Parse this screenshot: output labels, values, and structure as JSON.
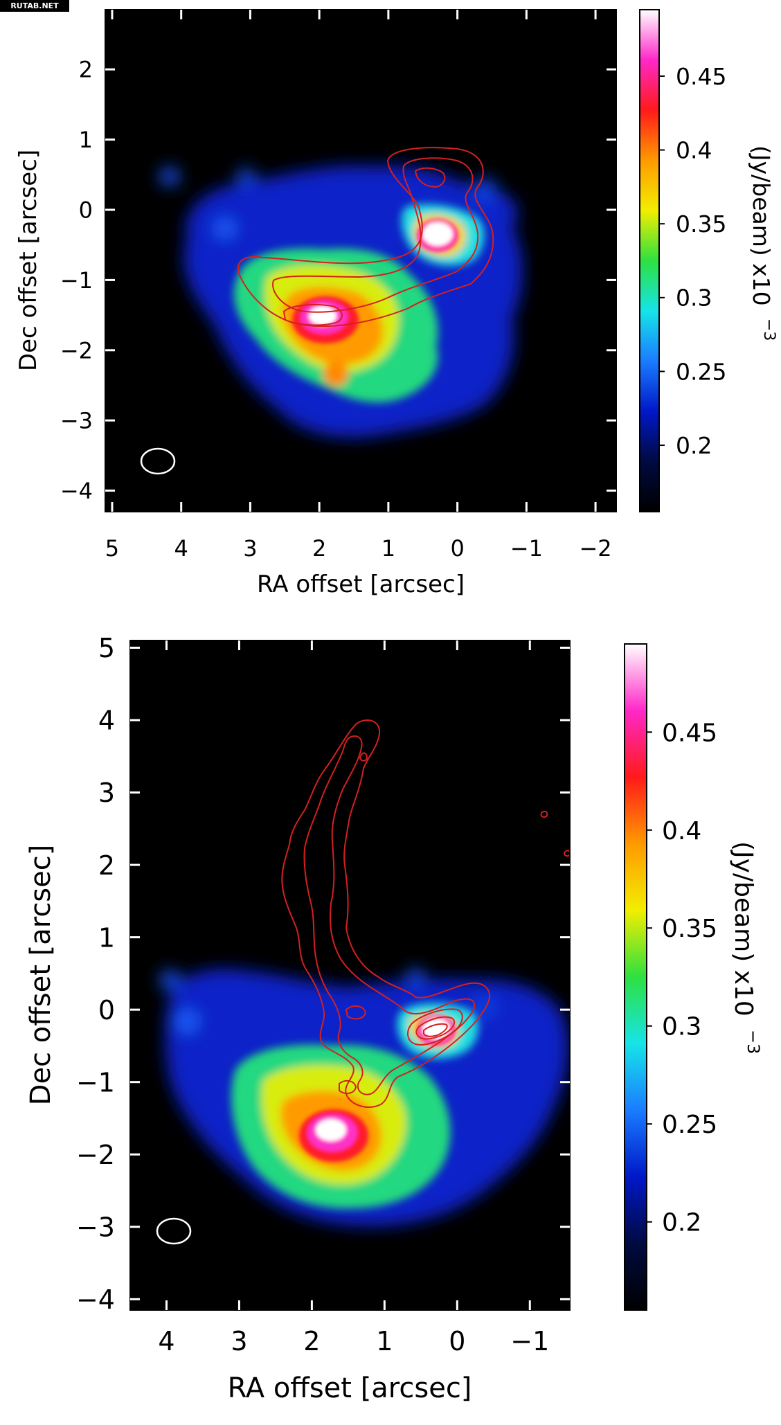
{
  "watermark": "RUTAB.NET",
  "chart_data": [
    {
      "type": "heatmap",
      "xlabel": "RA offset [arcsec]",
      "ylabel": "Dec offset [arcsec]",
      "colorbar_label": "(Jy/beam)  x10",
      "colorbar_exponent": "−3",
      "colorbar_ticks": [
        {
          "value": 0.2,
          "label": "0.2"
        },
        {
          "value": 0.25,
          "label": "0.25"
        },
        {
          "value": 0.3,
          "label": "0.3"
        },
        {
          "value": 0.35,
          "label": "0.35"
        },
        {
          "value": 0.4,
          "label": "0.4"
        },
        {
          "value": 0.45,
          "label": "0.45"
        }
      ],
      "colorbar_range": [
        0.155,
        0.495
      ],
      "colormap": [
        "#000000",
        "#000a40",
        "#0018c8",
        "#1a7cff",
        "#16e4e8",
        "#2ee040",
        "#f2ee00",
        "#ff9a00",
        "#ff1a1a",
        "#ff28c8",
        "#ffffff"
      ],
      "xlim": [
        5.1,
        -2.3
      ],
      "ylim": [
        -4.3,
        2.85
      ],
      "x_ticks": [
        {
          "value": 5,
          "label": "5"
        },
        {
          "value": 4,
          "label": "4"
        },
        {
          "value": 3,
          "label": "3"
        },
        {
          "value": 2,
          "label": "2"
        },
        {
          "value": 1,
          "label": "1"
        },
        {
          "value": 0,
          "label": "0"
        },
        {
          "value": -1,
          "label": "−1"
        },
        {
          "value": -2,
          "label": "−2"
        }
      ],
      "y_ticks": [
        {
          "value": 2,
          "label": "2"
        },
        {
          "value": 1,
          "label": "1"
        },
        {
          "value": 0,
          "label": "0"
        },
        {
          "value": -1,
          "label": "−1"
        },
        {
          "value": -2,
          "label": "−2"
        },
        {
          "value": -3,
          "label": "−3"
        },
        {
          "value": -4,
          "label": "−4"
        }
      ],
      "emission_peaks_arcsec": [
        {
          "x": 1.8,
          "y": -1.75,
          "peak_mJy_per_beam": 0.5
        },
        {
          "x": 0.3,
          "y": -0.45,
          "peak_mJy_per_beam": 0.5
        }
      ],
      "beam": {
        "x": 4.35,
        "y": -3.65,
        "major_arcsec": 0.45,
        "minor_arcsec": 0.37
      },
      "contour_color": "#d42020"
    },
    {
      "type": "heatmap",
      "xlabel": "RA offset [arcsec]",
      "ylabel": "Dec offset [arcsec]",
      "colorbar_label": "(Jy/beam)  x10",
      "colorbar_exponent": "−3",
      "colorbar_ticks": [
        {
          "value": 0.2,
          "label": "0.2"
        },
        {
          "value": 0.25,
          "label": "0.25"
        },
        {
          "value": 0.3,
          "label": "0.3"
        },
        {
          "value": 0.35,
          "label": "0.35"
        },
        {
          "value": 0.4,
          "label": "0.4"
        },
        {
          "value": 0.45,
          "label": "0.45"
        }
      ],
      "colorbar_range": [
        0.155,
        0.495
      ],
      "colormap": [
        "#000000",
        "#000a40",
        "#0018c8",
        "#1a7cff",
        "#16e4e8",
        "#2ee040",
        "#f2ee00",
        "#ff9a00",
        "#ff1a1a",
        "#ff28c8",
        "#ffffff"
      ],
      "xlim": [
        4.5,
        -1.55
      ],
      "ylim": [
        -4.15,
        5.1
      ],
      "x_ticks": [
        {
          "value": 4,
          "label": "4"
        },
        {
          "value": 3,
          "label": "3"
        },
        {
          "value": 2,
          "label": "2"
        },
        {
          "value": 1,
          "label": "1"
        },
        {
          "value": 0,
          "label": "0"
        },
        {
          "value": -1,
          "label": "−1"
        }
      ],
      "y_ticks": [
        {
          "value": 5,
          "label": "5"
        },
        {
          "value": 4,
          "label": "4"
        },
        {
          "value": 3,
          "label": "3"
        },
        {
          "value": 2,
          "label": "2"
        },
        {
          "value": 1,
          "label": "1"
        },
        {
          "value": 0,
          "label": "0"
        },
        {
          "value": -1,
          "label": "−1"
        },
        {
          "value": -2,
          "label": "−2"
        },
        {
          "value": -3,
          "label": "−3"
        },
        {
          "value": -4,
          "label": "−4"
        }
      ],
      "emission_peaks_arcsec": [
        {
          "x": 1.8,
          "y": -1.75,
          "peak_mJy_per_beam": 0.5
        },
        {
          "x": 0.3,
          "y": -0.45,
          "peak_mJy_per_beam": 0.5
        }
      ],
      "beam": {
        "x": 3.95,
        "y": -3.2,
        "major_arcsec": 0.45,
        "minor_arcsec": 0.37
      },
      "contour_color": "#d42020"
    }
  ]
}
